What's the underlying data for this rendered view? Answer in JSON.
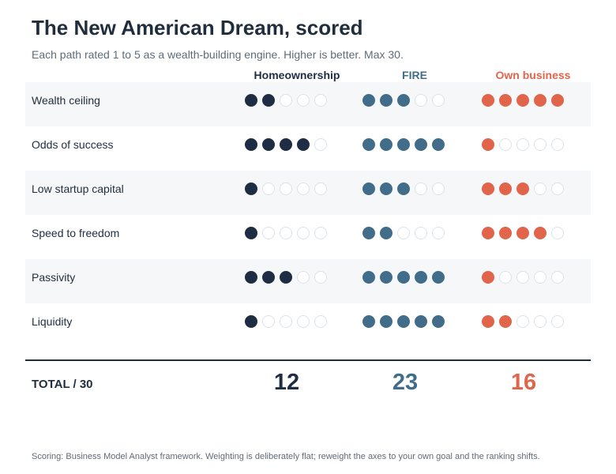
{
  "header": {
    "title": "The New American Dream, scored",
    "subtitle": "Each path rated 1 to 5 as a wealth-building engine. Higher is better. Max 30."
  },
  "chart_data": {
    "type": "table",
    "title": "The New American Dream, scored",
    "subtitle": "Each path rated 1 to 5 as a wealth-building engine. Higher is better. Max 30.",
    "scale_max": 5,
    "categories": [
      "Wealth ceiling",
      "Odds of success",
      "Low startup capital",
      "Speed to freedom",
      "Passivity",
      "Liquidity"
    ],
    "series": [
      {
        "name": "Homeownership",
        "color": "#1f2d44",
        "values": [
          2,
          4,
          1,
          1,
          3,
          1
        ]
      },
      {
        "name": "FIRE",
        "color": "#416d8a",
        "values": [
          3,
          5,
          3,
          2,
          5,
          5
        ]
      },
      {
        "name": "Own business",
        "color": "#e0654b",
        "values": [
          5,
          1,
          3,
          4,
          1,
          2
        ]
      }
    ],
    "total_label": "TOTAL / 30",
    "totals": [
      12,
      23,
      16
    ]
  },
  "footnote": "Scoring: Business Model Analyst framework. Weighting is deliberately flat; reweight the axes to your own goal and the ranking shifts.",
  "colors": {
    "empty_dot_border": "#dde2e7",
    "row_shade": "#f5f7f9",
    "text": "#1f2d3d",
    "muted": "#5f6b78"
  }
}
